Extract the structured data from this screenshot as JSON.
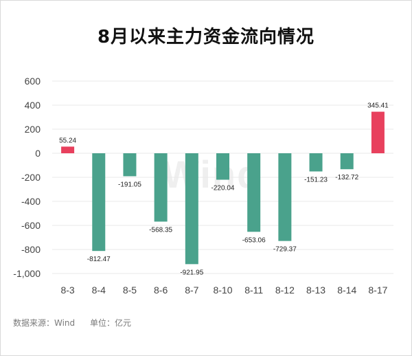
{
  "footer": {
    "source": "数据来源：Wind",
    "unit": "单位：亿元"
  },
  "watermark": "Wind",
  "colors": {
    "positive": "#e8405d",
    "negative": "#4aa28c",
    "grid": "#e9e9e9",
    "axis_text": "#444444"
  },
  "chart_data": {
    "type": "bar",
    "title": "8月以来主力资金流向情况",
    "categories": [
      "8-3",
      "8-4",
      "8-5",
      "8-6",
      "8-7",
      "8-10",
      "8-11",
      "8-12",
      "8-13",
      "8-14",
      "8-17"
    ],
    "values": [
      55.24,
      -812.47,
      -191.05,
      -568.35,
      -921.95,
      -220.04,
      -653.06,
      -729.37,
      -151.23,
      -132.72,
      345.41
    ],
    "value_labels": [
      "55.24",
      "-812.47",
      "-191.05",
      "-568.35",
      "-921.95",
      "-220.04",
      "-653.06",
      "-729.37",
      "-151.23",
      "-132.72",
      "345.41"
    ],
    "yticks": [
      600,
      400,
      200,
      0,
      -200,
      -400,
      -600,
      -800,
      -1000
    ],
    "ytick_labels": [
      "600",
      "400",
      "200",
      "0",
      "-200",
      "-400",
      "-600",
      "-800",
      "-1,000"
    ],
    "ylim": [
      -1000,
      600
    ],
    "grid": true,
    "xlabel": "",
    "ylabel": ""
  }
}
